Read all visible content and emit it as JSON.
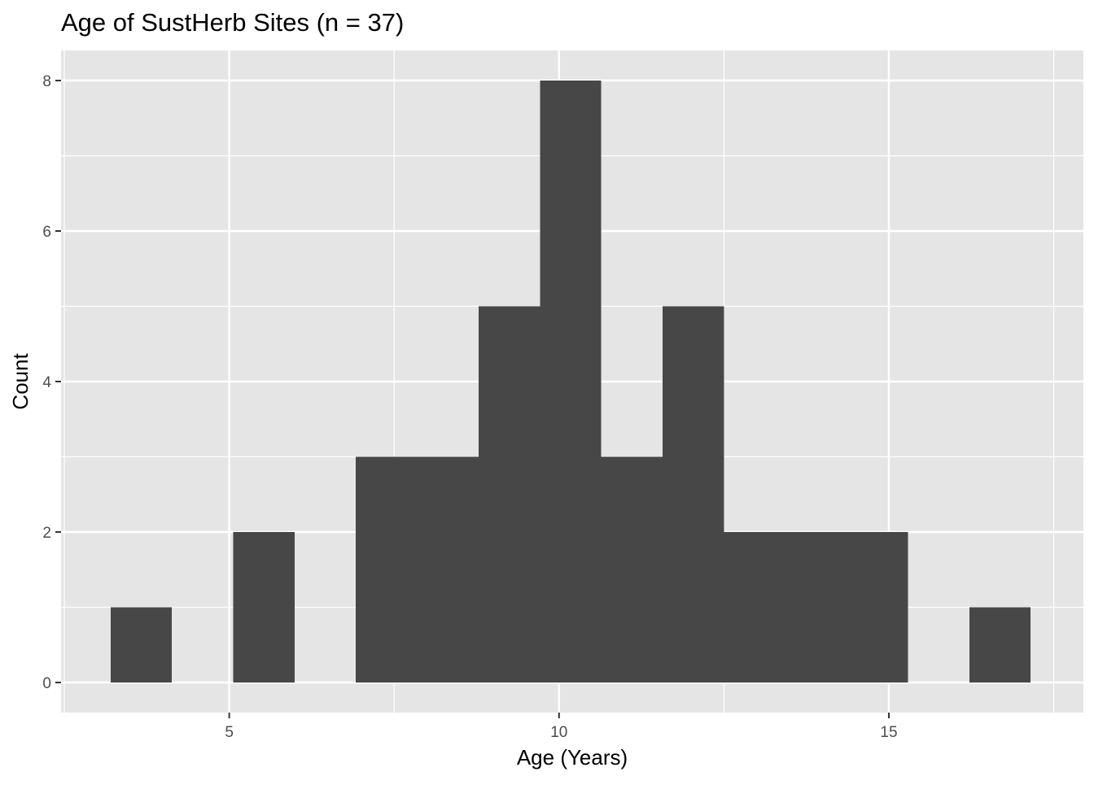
{
  "chart_data": {
    "type": "bar",
    "title": "Age of SustHerb Sites (n = 37)",
    "xlabel": "Age (Years)",
    "ylabel": "Count",
    "bins": [
      {
        "x0": 3.2,
        "x1": 4.13,
        "count": 1
      },
      {
        "x0": 4.13,
        "x1": 5.06,
        "count": 0
      },
      {
        "x0": 5.06,
        "x1": 5.99,
        "count": 2
      },
      {
        "x0": 5.99,
        "x1": 6.92,
        "count": 0
      },
      {
        "x0": 6.92,
        "x1": 7.85,
        "count": 3
      },
      {
        "x0": 7.85,
        "x1": 8.78,
        "count": 3
      },
      {
        "x0": 8.78,
        "x1": 9.71,
        "count": 5
      },
      {
        "x0": 9.71,
        "x1": 10.64,
        "count": 8
      },
      {
        "x0": 10.64,
        "x1": 11.57,
        "count": 3
      },
      {
        "x0": 11.57,
        "x1": 12.5,
        "count": 5
      },
      {
        "x0": 12.5,
        "x1": 13.43,
        "count": 2
      },
      {
        "x0": 13.43,
        "x1": 14.36,
        "count": 2
      },
      {
        "x0": 14.36,
        "x1": 15.29,
        "count": 2
      },
      {
        "x0": 15.29,
        "x1": 16.22,
        "count": 0
      },
      {
        "x0": 16.22,
        "x1": 17.15,
        "count": 1
      }
    ],
    "xlim": [
      2.45,
      17.95
    ],
    "ylim": [
      -0.4,
      8.4
    ],
    "x_ticks": [
      5,
      10,
      15
    ],
    "x_tick_labels": [
      "5",
      "10",
      "15"
    ],
    "y_ticks": [
      0,
      2,
      4,
      6,
      8
    ],
    "y_tick_labels": [
      "0",
      "2",
      "4",
      "6",
      "8"
    ],
    "grid": true,
    "colors": {
      "panel_background": "#e5e5e5",
      "grid_line": "#ffffff",
      "bar_fill": "#474747",
      "tick_text": "#4d4d4d",
      "tick_mark": "#333333"
    }
  }
}
